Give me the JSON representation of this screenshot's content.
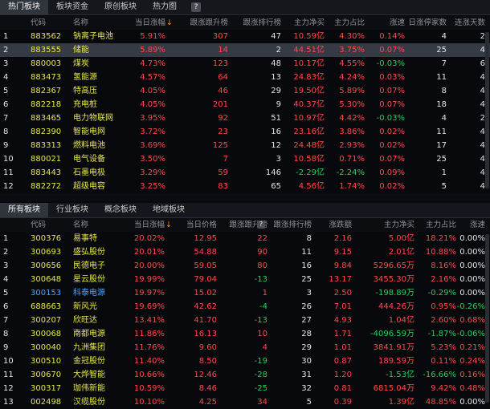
{
  "top_tabs": [
    "热门板块",
    "板块资金",
    "原创板块",
    "热力图"
  ],
  "top_headers": [
    "代码",
    "名称",
    "当日涨幅",
    "跟涨跟升榜",
    "跟涨排行榜",
    "主力净买",
    "主力占比",
    "涨速",
    "日涨停家数",
    "连涨天数"
  ],
  "top_rows": [
    {
      "no": "1",
      "code": "883562",
      "name": "钠离子电池",
      "chg": "5.91%",
      "a": "307",
      "b": "47",
      "net": "10.59亿",
      "ratio": "4.30%",
      "speed": "0.14%",
      "days": "4",
      "streak": "2"
    },
    {
      "no": "2",
      "code": "883555",
      "name": "储能",
      "chg": "5.89%",
      "a": "14",
      "b": "2",
      "net": "44.51亿",
      "ratio": "3.75%",
      "speed": "0.07%",
      "days": "25",
      "streak": "4"
    },
    {
      "no": "3",
      "code": "880003",
      "name": "煤炭",
      "chg": "4.73%",
      "a": "123",
      "b": "48",
      "net": "10.17亿",
      "ratio": "4.55%",
      "speed": "-0.03%",
      "days": "7",
      "streak": "6"
    },
    {
      "no": "4",
      "code": "883473",
      "name": "氢能源",
      "chg": "4.57%",
      "a": "64",
      "b": "13",
      "net": "24.83亿",
      "ratio": "4.24%",
      "speed": "0.03%",
      "days": "11",
      "streak": "4"
    },
    {
      "no": "5",
      "code": "882367",
      "name": "特高压",
      "chg": "4.05%",
      "a": "46",
      "b": "29",
      "net": "19.50亿",
      "ratio": "5.89%",
      "speed": "0.07%",
      "days": "8",
      "streak": "4"
    },
    {
      "no": "6",
      "code": "882218",
      "name": "充电桩",
      "chg": "4.05%",
      "a": "201",
      "b": "9",
      "net": "40.37亿",
      "ratio": "5.30%",
      "speed": "0.07%",
      "days": "18",
      "streak": "4"
    },
    {
      "no": "7",
      "code": "883465",
      "name": "电力物联网",
      "chg": "3.95%",
      "a": "92",
      "b": "51",
      "net": "10.97亿",
      "ratio": "4.42%",
      "speed": "-0.03%",
      "days": "4",
      "streak": "2"
    },
    {
      "no": "8",
      "code": "882390",
      "name": "智能电网",
      "chg": "3.72%",
      "a": "23",
      "b": "16",
      "net": "23.16亿",
      "ratio": "3.86%",
      "speed": "0.02%",
      "days": "11",
      "streak": "4"
    },
    {
      "no": "9",
      "code": "883313",
      "name": "燃料电池",
      "chg": "3.69%",
      "a": "125",
      "b": "12",
      "net": "24.48亿",
      "ratio": "2.93%",
      "speed": "0.02%",
      "days": "17",
      "streak": "4"
    },
    {
      "no": "10",
      "code": "880021",
      "name": "电气设备",
      "chg": "3.50%",
      "a": "7",
      "b": "3",
      "net": "10.58亿",
      "ratio": "0.71%",
      "speed": "0.07%",
      "days": "25",
      "streak": "4"
    },
    {
      "no": "11",
      "code": "883443",
      "name": "石墨电极",
      "chg": "3.29%",
      "a": "59",
      "b": "146",
      "net": "-2.29亿",
      "ratio": "-2.24%",
      "speed": "0.09%",
      "days": "1",
      "streak": "4"
    },
    {
      "no": "12",
      "code": "882272",
      "name": "超级电容",
      "chg": "3.25%",
      "a": "83",
      "b": "65",
      "net": "4.56亿",
      "ratio": "1.74%",
      "speed": "0.02%",
      "days": "5",
      "streak": "4"
    }
  ],
  "bottom_tabs": [
    "所有板块",
    "行业板块",
    "概念板块",
    "地域板块"
  ],
  "bottom_headers": [
    "代码",
    "名称",
    "当日涨幅",
    "当日价格",
    "跟涨跟升榜",
    "跟涨排行榜",
    "涨跌额",
    "主力净买",
    "主力占比",
    "涨速"
  ],
  "bottom_rows": [
    {
      "no": "1",
      "code": "300376",
      "name": "易事特",
      "chg": "20.02%",
      "price": "12.95",
      "a": "22",
      "b": "8",
      "diff": "2.16",
      "net": "5.00亿",
      "ratio": "18.21%",
      "speed": "0.00%"
    },
    {
      "no": "2",
      "code": "300693",
      "name": "盛弘股份",
      "chg": "20.01%",
      "price": "54.88",
      "a": "90",
      "b": "11",
      "diff": "9.15",
      "net": "2.01亿",
      "ratio": "10.88%",
      "speed": "0.00%"
    },
    {
      "no": "3",
      "code": "300656",
      "name": "民德电子",
      "chg": "20.00%",
      "price": "59.05",
      "a": "80",
      "b": "16",
      "diff": "9.84",
      "net": "5296.65万",
      "ratio": "8.16%",
      "speed": "0.00%"
    },
    {
      "no": "4",
      "code": "300648",
      "name": "星云股份",
      "chg": "19.99%",
      "price": "79.04",
      "a": "-13",
      "b": "25",
      "diff": "13.17",
      "net": "3455.30万",
      "ratio": "2.16%",
      "speed": "0.00%"
    },
    {
      "no": "5",
      "code": "300153",
      "name": "科泰电源",
      "chg": "19.97%",
      "price": "15.02",
      "a": "1",
      "b": "3",
      "diff": "2.50",
      "net": "-198.89万",
      "ratio": "-0.29%",
      "speed": "0.00%"
    },
    {
      "no": "6",
      "code": "688663",
      "name": "新风光",
      "chg": "19.69%",
      "price": "42.62",
      "a": "-4",
      "b": "26",
      "diff": "7.01",
      "net": "444.26万",
      "ratio": "0.95%",
      "speed": "-0.26%"
    },
    {
      "no": "7",
      "code": "300207",
      "name": "欣旺达",
      "chg": "13.41%",
      "price": "41.70",
      "a": "-13",
      "b": "27",
      "diff": "4.93",
      "net": "1.04亿",
      "ratio": "2.60%",
      "speed": "0.68%"
    },
    {
      "no": "8",
      "code": "300068",
      "name": "南都电源",
      "chg": "11.86%",
      "price": "16.13",
      "a": "10",
      "b": "28",
      "diff": "1.71",
      "net": "-4096.59万",
      "ratio": "-1.87%",
      "speed": "-0.06%"
    },
    {
      "no": "9",
      "code": "300040",
      "name": "九洲集团",
      "chg": "11.76%",
      "price": "9.60",
      "a": "4",
      "b": "29",
      "diff": "1.01",
      "net": "3841.91万",
      "ratio": "5.23%",
      "speed": "0.21%"
    },
    {
      "no": "10",
      "code": "300510",
      "name": "金冠股份",
      "chg": "11.40%",
      "price": "8.50",
      "a": "-19",
      "b": "30",
      "diff": "0.87",
      "net": "189.59万",
      "ratio": "0.11%",
      "speed": "0.24%"
    },
    {
      "no": "11",
      "code": "300670",
      "name": "大烨智能",
      "chg": "10.66%",
      "price": "12.46",
      "a": "-28",
      "b": "31",
      "diff": "1.20",
      "net": "-1.53亿",
      "ratio": "-16.66%",
      "speed": "0.16%"
    },
    {
      "no": "12",
      "code": "300317",
      "name": "珈伟新能",
      "chg": "10.59%",
      "price": "8.46",
      "a": "-25",
      "b": "32",
      "diff": "0.81",
      "net": "6815.04万",
      "ratio": "9.42%",
      "speed": "0.48%"
    },
    {
      "no": "13",
      "code": "002498",
      "name": "汉缆股份",
      "chg": "10.10%",
      "price": "4.25",
      "a": "34",
      "b": "5",
      "diff": "0.39",
      "net": "1.39亿",
      "ratio": "48.85%",
      "speed": "0.00%"
    }
  ],
  "colors": {
    "up": "#ff4a4a",
    "down": "#23d15d",
    "name": "#e6e64a",
    "link": "#4aa3ff",
    "sort": "#ff8a00"
  }
}
